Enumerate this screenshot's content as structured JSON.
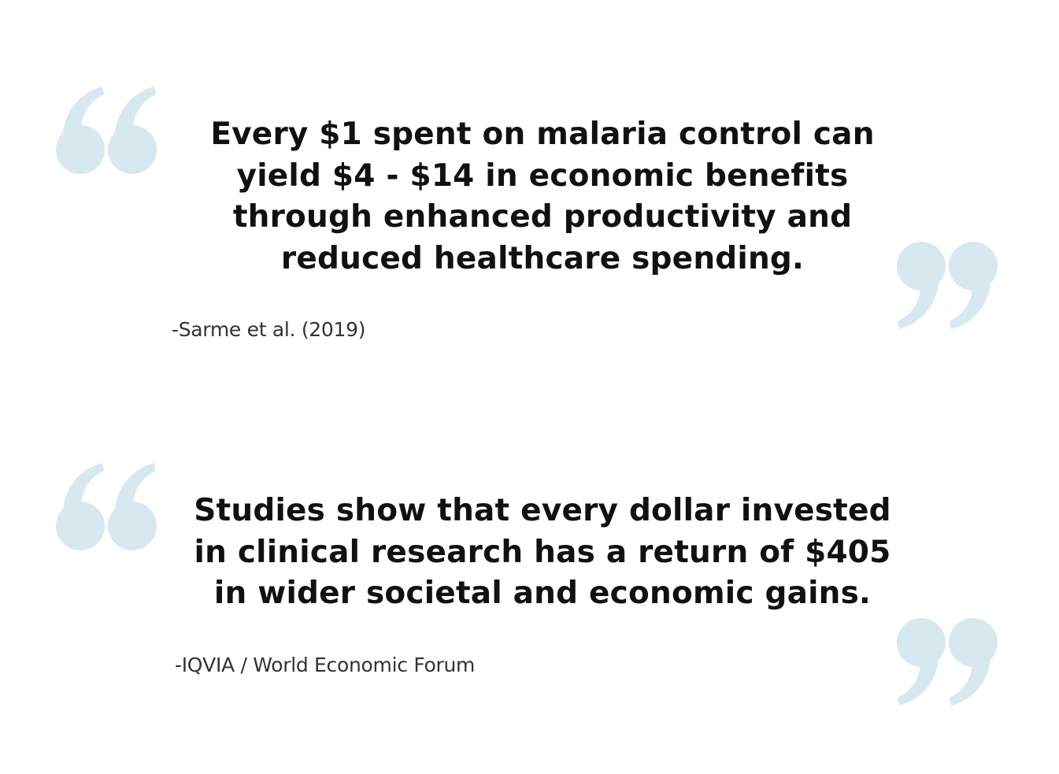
{
  "quotes": [
    {
      "text": "Every $1 spent on malaria control can yield $4 - $14 in economic benefits through enhanced productivity and reduced healthcare spending.",
      "attribution": "-Sarme et al. (2019)"
    },
    {
      "text": "Studies show that every dollar invested in clinical research has a return of $405 in wider societal and economic gains.",
      "attribution": "-IQVIA / World Economic Forum"
    }
  ],
  "colors": {
    "quote_mark": "#d8e8ef",
    "text": "#111111",
    "attribution": "#333333"
  },
  "icons": {
    "open_quote": "open-quote-icon",
    "close_quote": "close-quote-icon"
  }
}
